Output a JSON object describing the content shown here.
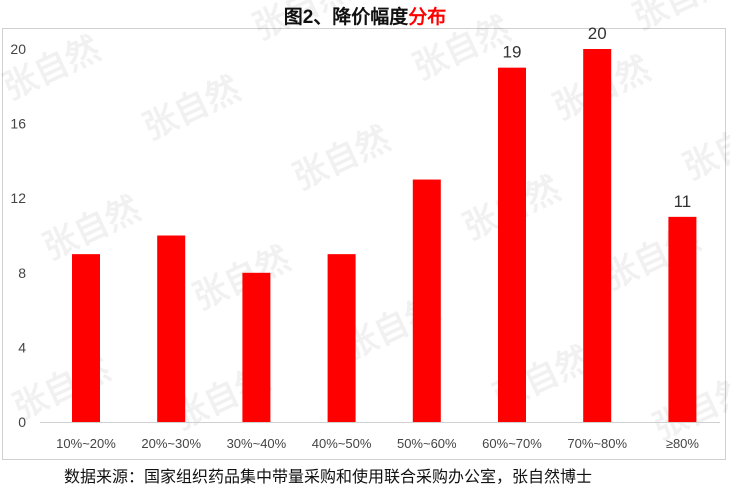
{
  "title": {
    "main": "图2、降价幅度",
    "highlight": "分布"
  },
  "source": "数据来源：国家组织药品集中带量采购和使用联合采购办公室，张自然博士",
  "watermark": "张自然",
  "colors": {
    "bar": "#ff0000",
    "title_highlight": "#ff0000"
  },
  "chart_data": {
    "type": "bar",
    "title": "图2、降价幅度分布",
    "categories": [
      "10%~20%",
      "20%~30%",
      "30%~40%",
      "40%~50%",
      "50%~60%",
      "60%~70%",
      "70%~80%",
      "≥80%"
    ],
    "values": [
      9,
      10,
      8,
      9,
      13,
      19,
      20,
      11
    ],
    "data_labels": [
      null,
      null,
      null,
      null,
      null,
      "19",
      "20",
      "11"
    ],
    "ylim": [
      0,
      20
    ],
    "yticks": [
      "0",
      "4",
      "8",
      "12",
      "16",
      "20"
    ],
    "grid": false,
    "legend": "none"
  }
}
